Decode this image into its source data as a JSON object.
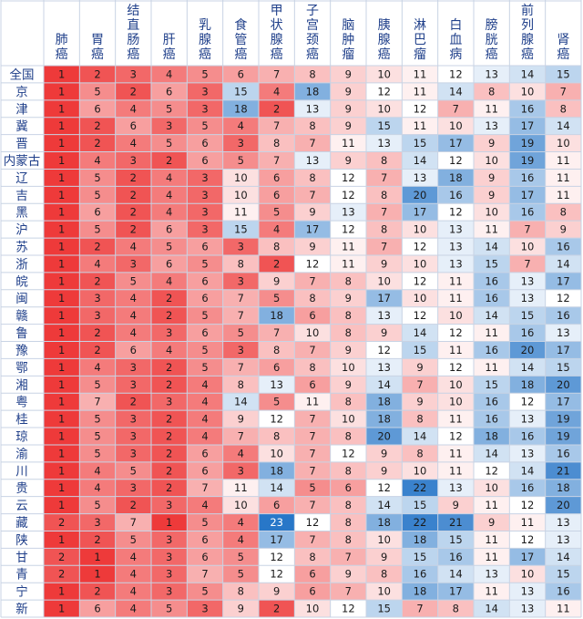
{
  "chart_data": {
    "type": "heatmap",
    "title": "",
    "colors": {
      "low": "#ee3a3a",
      "mid": "#ffffff",
      "high": "#2877c8",
      "header_text": "#1f3f8a",
      "grid": "#c8d3e4"
    },
    "columns": [
      "肺癌",
      "胃癌",
      "结直肠癌",
      "肝癌",
      "乳腺癌",
      "食管癌",
      "甲状腺癌",
      "子宫颈癌",
      "脑肿瘤",
      "胰腺癌",
      "淋巴瘤",
      "白血病",
      "膀胱癌",
      "前列腺癌",
      "肾癌"
    ],
    "rows": [
      {
        "label": "全国",
        "values": [
          1,
          2,
          3,
          4,
          5,
          6,
          7,
          8,
          9,
          10,
          11,
          12,
          13,
          14,
          15
        ]
      },
      {
        "label": "京",
        "values": [
          1,
          5,
          2,
          6,
          3,
          15,
          4,
          18,
          9,
          12,
          11,
          14,
          8,
          10,
          7
        ]
      },
      {
        "label": "津",
        "values": [
          1,
          6,
          4,
          5,
          3,
          18,
          2,
          13,
          9,
          10,
          12,
          7,
          11,
          16,
          8
        ]
      },
      {
        "label": "冀",
        "values": [
          1,
          2,
          6,
          3,
          5,
          4,
          7,
          8,
          9,
          15,
          11,
          10,
          13,
          17,
          14
        ]
      },
      {
        "label": "晋",
        "values": [
          1,
          2,
          4,
          5,
          6,
          3,
          8,
          7,
          11,
          13,
          15,
          17,
          9,
          19,
          10
        ]
      },
      {
        "label": "内蒙古",
        "values": [
          1,
          4,
          3,
          2,
          6,
          5,
          7,
          13,
          9,
          8,
          14,
          12,
          10,
          19,
          11
        ]
      },
      {
        "label": "辽",
        "values": [
          1,
          5,
          2,
          4,
          3,
          10,
          6,
          8,
          12,
          7,
          13,
          18,
          9,
          16,
          11
        ]
      },
      {
        "label": "吉",
        "values": [
          1,
          5,
          2,
          4,
          3,
          10,
          6,
          7,
          12,
          8,
          20,
          16,
          9,
          17,
          11
        ]
      },
      {
        "label": "黑",
        "values": [
          1,
          6,
          2,
          4,
          3,
          11,
          5,
          9,
          13,
          7,
          17,
          12,
          10,
          16,
          8
        ]
      },
      {
        "label": "沪",
        "values": [
          1,
          5,
          2,
          6,
          3,
          15,
          4,
          17,
          12,
          8,
          10,
          13,
          11,
          7,
          9
        ]
      },
      {
        "label": "苏",
        "values": [
          1,
          2,
          4,
          5,
          6,
          3,
          8,
          9,
          11,
          7,
          12,
          13,
          14,
          10,
          16
        ]
      },
      {
        "label": "浙",
        "values": [
          1,
          4,
          3,
          6,
          5,
          8,
          2,
          12,
          11,
          9,
          10,
          13,
          15,
          7,
          14
        ]
      },
      {
        "label": "皖",
        "values": [
          1,
          2,
          5,
          4,
          6,
          3,
          9,
          7,
          8,
          10,
          12,
          11,
          16,
          13,
          17
        ]
      },
      {
        "label": "闽",
        "values": [
          1,
          3,
          4,
          2,
          6,
          7,
          5,
          8,
          9,
          17,
          10,
          11,
          16,
          13,
          12
        ]
      },
      {
        "label": "赣",
        "values": [
          1,
          3,
          4,
          2,
          5,
          7,
          18,
          6,
          8,
          13,
          12,
          10,
          14,
          15,
          16
        ]
      },
      {
        "label": "鲁",
        "values": [
          1,
          2,
          4,
          3,
          6,
          5,
          7,
          10,
          8,
          9,
          14,
          12,
          11,
          16,
          13
        ]
      },
      {
        "label": "豫",
        "values": [
          1,
          2,
          6,
          4,
          5,
          3,
          8,
          7,
          9,
          12,
          15,
          11,
          16,
          20,
          17
        ]
      },
      {
        "label": "鄂",
        "values": [
          1,
          4,
          3,
          2,
          5,
          7,
          6,
          8,
          10,
          13,
          9,
          12,
          11,
          14,
          15
        ]
      },
      {
        "label": "湘",
        "values": [
          1,
          5,
          3,
          2,
          4,
          8,
          13,
          6,
          9,
          14,
          7,
          10,
          15,
          18,
          20
        ]
      },
      {
        "label": "粤",
        "values": [
          1,
          7,
          2,
          3,
          4,
          14,
          5,
          11,
          8,
          18,
          9,
          10,
          16,
          12,
          17
        ]
      },
      {
        "label": "桂",
        "values": [
          1,
          5,
          3,
          2,
          4,
          9,
          12,
          7,
          10,
          18,
          8,
          11,
          16,
          13,
          19
        ]
      },
      {
        "label": "琼",
        "values": [
          1,
          5,
          3,
          2,
          4,
          7,
          8,
          7,
          8,
          20,
          14,
          12,
          18,
          16,
          19
        ]
      },
      {
        "label": "渝",
        "values": [
          1,
          5,
          3,
          2,
          6,
          4,
          10,
          7,
          12,
          9,
          8,
          11,
          14,
          13,
          16
        ]
      },
      {
        "label": "川",
        "values": [
          1,
          4,
          5,
          2,
          6,
          3,
          18,
          7,
          8,
          9,
          10,
          11,
          12,
          14,
          21
        ]
      },
      {
        "label": "贵",
        "values": [
          1,
          4,
          3,
          2,
          7,
          11,
          14,
          5,
          6,
          12,
          22,
          13,
          10,
          16,
          18
        ]
      },
      {
        "label": "云",
        "values": [
          1,
          5,
          2,
          3,
          4,
          10,
          6,
          7,
          8,
          14,
          15,
          9,
          11,
          12,
          20
        ]
      },
      {
        "label": "藏",
        "values": [
          2,
          3,
          7,
          1,
          5,
          4,
          23,
          12,
          8,
          18,
          22,
          21,
          9,
          11,
          13
        ]
      },
      {
        "label": "陕",
        "values": [
          1,
          2,
          5,
          3,
          6,
          4,
          17,
          7,
          8,
          10,
          18,
          15,
          11,
          12,
          13
        ]
      },
      {
        "label": "甘",
        "values": [
          2,
          1,
          4,
          3,
          6,
          5,
          12,
          8,
          7,
          9,
          15,
          16,
          11,
          17,
          14
        ]
      },
      {
        "label": "青",
        "values": [
          2,
          1,
          4,
          3,
          7,
          5,
          12,
          6,
          9,
          8,
          16,
          14,
          13,
          10,
          15
        ]
      },
      {
        "label": "宁",
        "values": [
          1,
          2,
          4,
          3,
          5,
          8,
          9,
          6,
          7,
          10,
          18,
          17,
          11,
          13,
          16
        ]
      },
      {
        "label": "新",
        "values": [
          1,
          6,
          4,
          5,
          3,
          9,
          2,
          10,
          12,
          15,
          7,
          8,
          14,
          13,
          11
        ]
      }
    ]
  }
}
